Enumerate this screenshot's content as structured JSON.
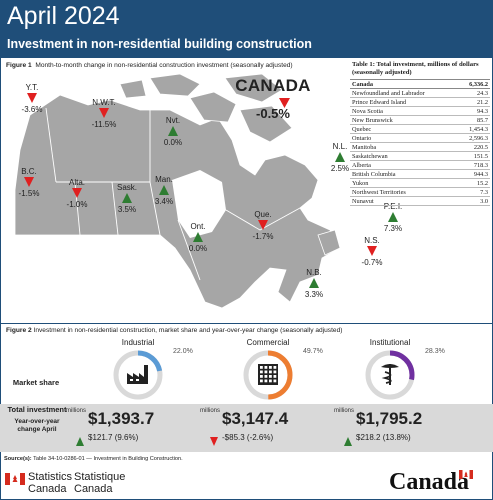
{
  "header": {
    "title": "April 2024",
    "subtitle": "Investment in non-residential building construction"
  },
  "figure1": {
    "label": "Figure 1",
    "caption": "Month-to-month change in non-residential construction investment (seasonally adjusted)",
    "national": {
      "name": "CANADA",
      "value": "-0.5%",
      "direction": "down"
    },
    "regions": [
      {
        "name": "Y.T.",
        "value": "-3.6%",
        "direction": "down"
      },
      {
        "name": "N.W.T.",
        "value": "-11.5%",
        "direction": "down"
      },
      {
        "name": "Nvt.",
        "value": "0.0%",
        "direction": "up"
      },
      {
        "name": "B.C.",
        "value": "-1.5%",
        "direction": "down"
      },
      {
        "name": "Alta.",
        "value": "-1.0%",
        "direction": "down"
      },
      {
        "name": "Sask.",
        "value": "3.5%",
        "direction": "up"
      },
      {
        "name": "Man.",
        "value": "3.4%",
        "direction": "up"
      },
      {
        "name": "Ont.",
        "value": "0.0%",
        "direction": "up"
      },
      {
        "name": "Que.",
        "value": "-1.7%",
        "direction": "down"
      },
      {
        "name": "N.L.",
        "value": "2.5%",
        "direction": "up"
      },
      {
        "name": "P.E.I.",
        "value": "7.3%",
        "direction": "up"
      },
      {
        "name": "N.S.",
        "value": "-0.7%",
        "direction": "down"
      },
      {
        "name": "N.B.",
        "value": "3.3%",
        "direction": "up"
      }
    ]
  },
  "table1": {
    "title": "Table 1: Total investment, millions of dollars (seasonally adjusted)",
    "rows": [
      {
        "name": "Canada",
        "value": "6,336.2"
      },
      {
        "name": "Newfoundland and Labrador",
        "value": "24.3"
      },
      {
        "name": "Prince Edward Island",
        "value": "21.2"
      },
      {
        "name": "Nova Scotia",
        "value": "94.3"
      },
      {
        "name": "New Brunswick",
        "value": "85.7"
      },
      {
        "name": "Quebec",
        "value": "1,454.3"
      },
      {
        "name": "Ontario",
        "value": "2,596.3"
      },
      {
        "name": "Manitoba",
        "value": "220.5"
      },
      {
        "name": "Saskatchewan",
        "value": "151.5"
      },
      {
        "name": "Alberta",
        "value": "718.3"
      },
      {
        "name": "British Columbia",
        "value": "944.3"
      },
      {
        "name": "Yukon",
        "value": "15.2"
      },
      {
        "name": "Northwest Territories",
        "value": "7.3"
      },
      {
        "name": "Nunavut",
        "value": "3.0"
      }
    ]
  },
  "figure2": {
    "label": "Figure 2",
    "caption": "Investment in non-residential construction, market share and year-over-year change (seasonally adjusted)",
    "market_share_label": "Market share",
    "total_label": "Total investment",
    "yoy_label": "Year-over-year change April",
    "sectors": [
      {
        "name": "Industrial",
        "share_label": "22.0%",
        "share": 22.0,
        "color": "#5b9bd5",
        "unit": "millions",
        "amount": "$1,393.7",
        "change": "$121.7 (9.6%)",
        "direction": "up"
      },
      {
        "name": "Commercial",
        "share_label": "49.7%",
        "share": 49.7,
        "color": "#ed7d31",
        "unit": "millions",
        "amount": "$3,147.4",
        "change": "-$85.3 (-2.6%)",
        "direction": "down"
      },
      {
        "name": "Institutional",
        "share_label": "28.3%",
        "share": 28.3,
        "color": "#7030a0",
        "unit": "millions",
        "amount": "$1,795.2",
        "change": "$218.2 (13.8%)",
        "direction": "up"
      }
    ]
  },
  "source": {
    "label": "Source(s):",
    "text": "Table 34-10-0286-01 — Investment in Building Construction."
  },
  "footer": {
    "sc_en_1": "Statistics",
    "sc_en_2": "Canada",
    "sc_fr_1": "Statistique",
    "sc_fr_2": "Canada",
    "wordmark": "Canada"
  },
  "colors": {
    "up": "#2e7d32",
    "down": "#e02020",
    "header": "#1f4e79",
    "land": "#a6a6a6"
  }
}
